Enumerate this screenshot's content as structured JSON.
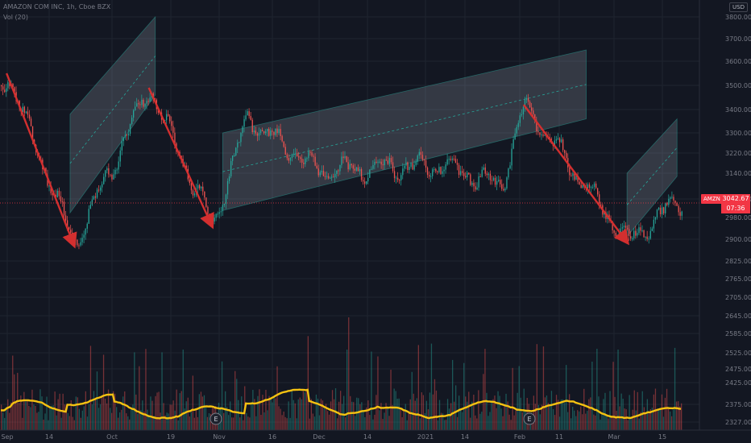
{
  "header": {
    "title": "AMAZON COM INC, 1h, Cboe BZX",
    "volume_label": "Vol (20)"
  },
  "currency_button": "USD",
  "last_price": {
    "symbol": "AMZN",
    "value": "3042.67",
    "countdown": "07:36",
    "color": "#f23645"
  },
  "earnings_markers": [
    "E",
    "E"
  ],
  "colors": {
    "background": "#131722",
    "grid": "#1f2430",
    "up": "#26a69a",
    "down": "#ef5350",
    "arrow": "#d32f2f",
    "channel_fill": "rgba(150,158,170,0.25)",
    "channel_border": "#26a69a",
    "volume_ma": "#f5c211",
    "axis_text": "#787b86"
  },
  "chart_data": {
    "type": "candlestick",
    "title": "AMAZON COM INC, 1h, Cboe BZX",
    "x_tick_labels": [
      "Sep",
      "14",
      "Oct",
      "19",
      "Nov",
      "16",
      "Dec",
      "14",
      "2021",
      "14",
      "Feb",
      "11",
      "Mar",
      "15"
    ],
    "y_ticks": [
      2327,
      2375,
      2425,
      2475,
      2525,
      2585,
      2645,
      2705,
      2765,
      2825,
      2900,
      2980,
      3060,
      3140,
      3220,
      3300,
      3400,
      3500,
      3600,
      3700,
      3800
    ],
    "ylim": [
      2327,
      3800
    ],
    "price_path": {
      "x": [
        "Sep 1",
        "Sep 2",
        "Sep 21",
        "Oct 12",
        "Oct 30",
        "Nov 9",
        "Dec 1",
        "Jan 8",
        "Jan 26",
        "Feb 2",
        "Mar 5",
        "Mar 19"
      ],
      "y": [
        3500,
        3550,
        2880,
        3490,
        2950,
        3360,
        3150,
        3170,
        3100,
        3420,
        2890,
        3050
      ]
    },
    "last_price": 3042.67,
    "volume": {
      "series_name": "Vol (20)",
      "ma_period": 20
    },
    "annotations": {
      "trend_arrows": [
        {
          "from": [
            "Sep 2",
            3550
          ],
          "to": [
            "Sep 21",
            2880
          ]
        },
        {
          "from": [
            "Oct 12",
            3490
          ],
          "to": [
            "Oct 30",
            2950
          ]
        },
        {
          "from": [
            "Feb 2",
            3420
          ],
          "to": [
            "Mar 5",
            2890
          ]
        }
      ],
      "channels": [
        {
          "from": [
            "Sep 20",
            3000
          ],
          "to": [
            "Oct 14",
            3460
          ],
          "width": 380
        },
        {
          "from": [
            "Nov 2",
            3010
          ],
          "to": [
            "Feb 20",
            3360
          ],
          "width": 290
        },
        {
          "from": [
            "Mar 5",
            2910
          ],
          "to": [
            "Mar 19",
            3130
          ],
          "width": 230
        }
      ]
    }
  }
}
